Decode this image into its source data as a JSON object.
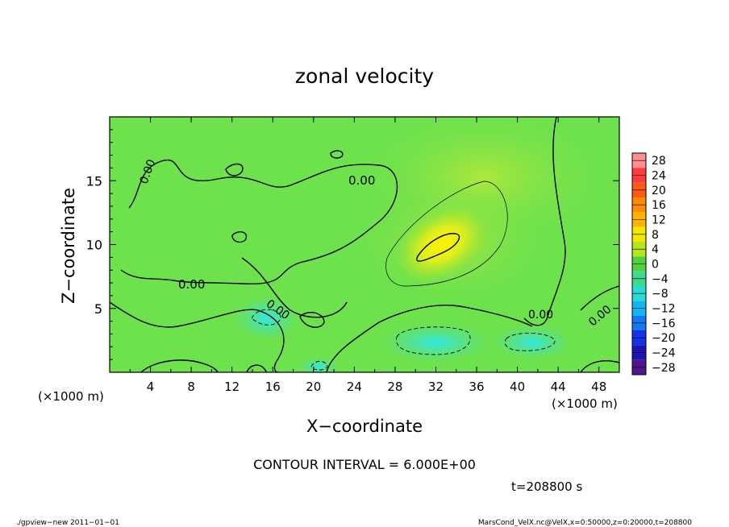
{
  "chart_data": {
    "type": "heatmap",
    "title": "zonal velocity",
    "xlabel": "X−coordinate",
    "ylabel": "Z−coordinate",
    "x_unit": "(×1000 m)",
    "y_unit": "(×1000 m)",
    "xlim": [
      0,
      50
    ],
    "ylim": [
      0,
      20
    ],
    "x_ticks": [
      "4",
      "8",
      "12",
      "16",
      "20",
      "24",
      "28",
      "32",
      "36",
      "40",
      "44",
      "48"
    ],
    "x_tick_values": [
      4,
      8,
      12,
      16,
      20,
      24,
      28,
      32,
      36,
      40,
      44,
      48
    ],
    "y_ticks": [
      "5",
      "10",
      "15"
    ],
    "y_tick_values": [
      5,
      10,
      15
    ],
    "colorbar": {
      "levels": [
        28,
        24,
        20,
        16,
        12,
        8,
        4,
        0,
        -4,
        -8,
        -12,
        -16,
        -20,
        -24,
        -28
      ],
      "labels": [
        "28",
        "24",
        "20",
        "16",
        "12",
        "8",
        "4",
        "0",
        "−4",
        "−8",
        "−12",
        "−16",
        "−20",
        "−24",
        "−28"
      ],
      "colors": [
        "#ff8f8f",
        "#ff3c3c",
        "#ff5a14",
        "#ff8c00",
        "#ffb400",
        "#f5e600",
        "#b4e61e",
        "#50d23c",
        "#3cdc8c",
        "#28dcd2",
        "#14b4f0",
        "#1478f0",
        "#1432e6",
        "#1e14b4",
        "#50148c"
      ]
    },
    "contour_labels": [
      "0.00",
      "0.00",
      "0.00",
      "0.00",
      "0.00",
      "0.00"
    ],
    "contour_interval": "CONTOUR INTERVAL = 6.000E+00",
    "time_label": "t=208800 s",
    "features": [
      {
        "kind": "max",
        "x": 32,
        "z": 10,
        "value": 12
      },
      {
        "kind": "min",
        "x": 33,
        "z": 2,
        "value": -8
      }
    ]
  },
  "footer": {
    "left": "./gpview−new   2011−01−01",
    "right": "MarsCond_VelX.nc@VelX,x=0:50000,z=0:20000,t=208800"
  }
}
